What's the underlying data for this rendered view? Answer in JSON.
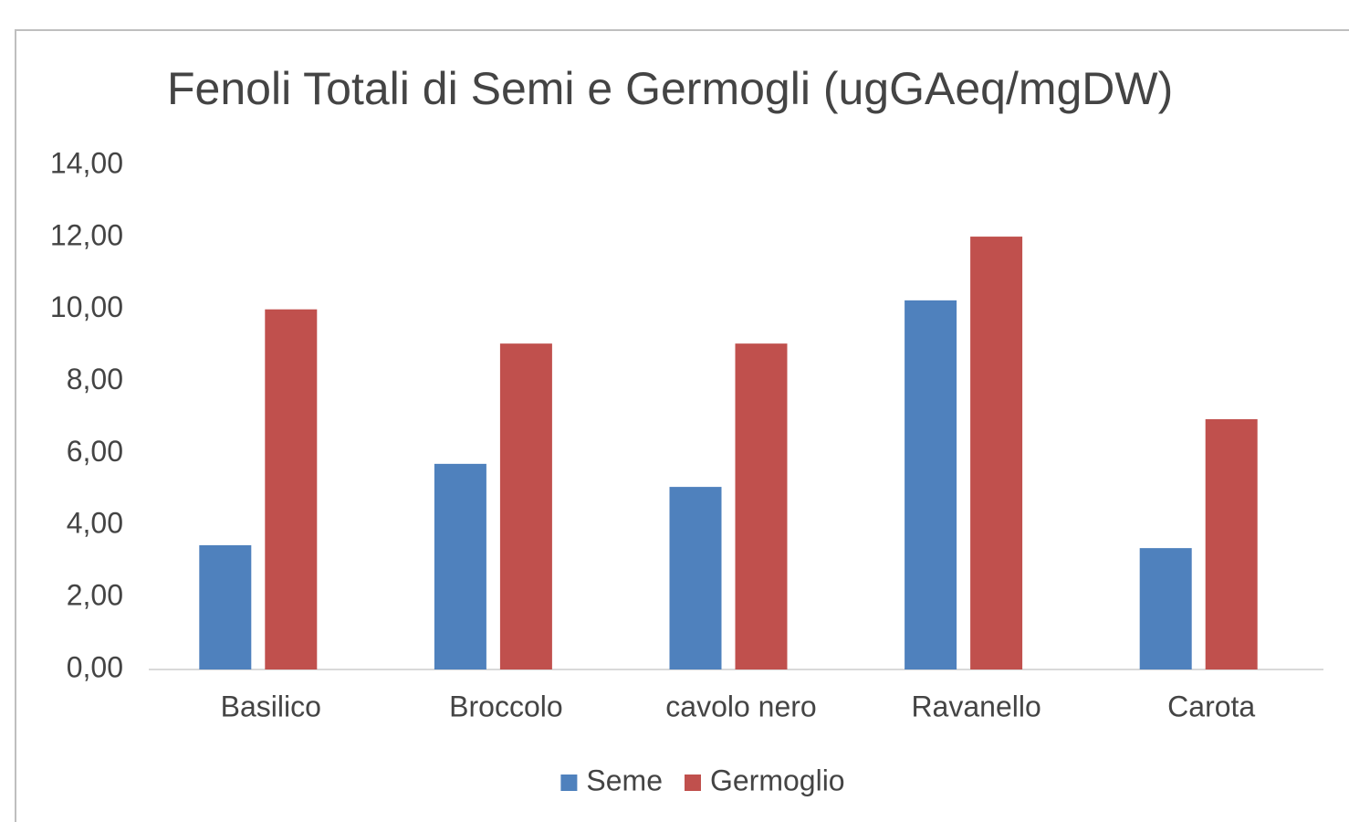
{
  "chart_data": {
    "type": "bar",
    "title": "Fenoli Totali di Semi e Germogli (ugGAeq/mgDW)",
    "categories": [
      "Basilico",
      "Broccolo",
      "cavolo nero",
      "Ravanello",
      "Carota"
    ],
    "series": [
      {
        "name": "Seme",
        "color": "#4f81bd",
        "values": [
          3.45,
          5.71,
          5.07,
          10.25,
          3.37
        ]
      },
      {
        "name": "Germoglio",
        "color": "#c0504d",
        "values": [
          10.0,
          9.05,
          9.05,
          12.02,
          6.95
        ]
      }
    ],
    "ylim": [
      0,
      14
    ],
    "yticks": [
      {
        "value": 0,
        "label": "0,00"
      },
      {
        "value": 2,
        "label": "2,00"
      },
      {
        "value": 4,
        "label": "4,00"
      },
      {
        "value": 6,
        "label": "6,00"
      },
      {
        "value": 8,
        "label": "8,00"
      },
      {
        "value": 10,
        "label": "10,00"
      },
      {
        "value": 12,
        "label": "12,00"
      },
      {
        "value": 14,
        "label": "14,00"
      }
    ],
    "grid": false,
    "legend": "bottom"
  }
}
